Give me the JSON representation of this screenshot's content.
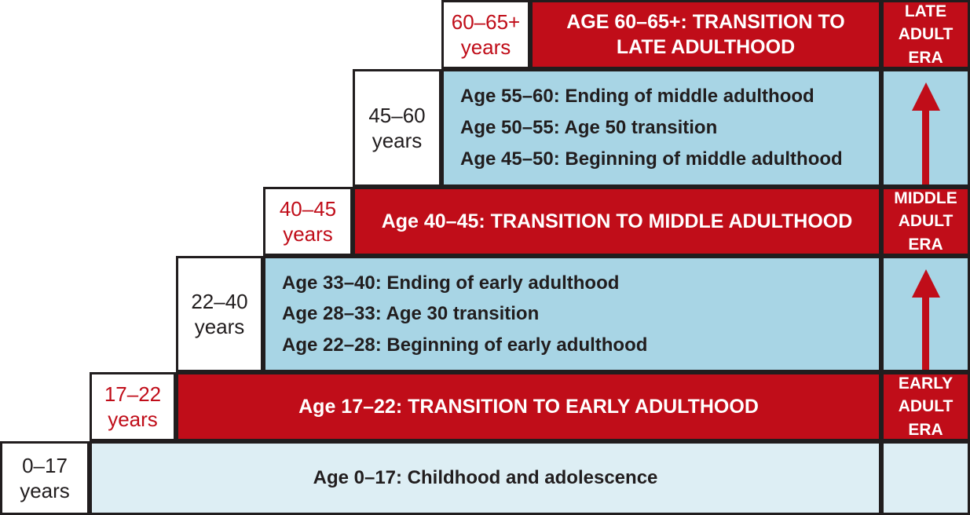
{
  "colors": {
    "red": "#c00d19",
    "medium_blue": "#a8d5e5",
    "pale_blue": "#ddeef4",
    "border": "#211d1e",
    "white": "#ffffff"
  },
  "rows": [
    {
      "type": "transition",
      "label": {
        "range": "60–65+",
        "unit": "years",
        "text_color": "#c00d19"
      },
      "content": "AGE 60–65+: TRANSITION TO LATE ADULTHOOD",
      "era": "LATE ADULT ERA"
    },
    {
      "type": "period",
      "label": {
        "range": "45–60",
        "unit": "years",
        "text_color": "#211d1e"
      },
      "items": [
        "Age 55–60: Ending of middle adulthood",
        "Age 50–55: Age 50 transition",
        "Age 45–50: Beginning of middle adulthood"
      ],
      "era_arrow_icon": "up-arrow-icon"
    },
    {
      "type": "transition",
      "label": {
        "range": "40–45",
        "unit": "years",
        "text_color": "#c00d19"
      },
      "content": "Age 40–45: TRANSITION TO MIDDLE ADULTHOOD",
      "era": "MIDDLE ADULT ERA"
    },
    {
      "type": "period",
      "label": {
        "range": "22–40",
        "unit": "years",
        "text_color": "#211d1e"
      },
      "items": [
        "Age 33–40: Ending of early adulthood",
        "Age 28–33: Age 30 transition",
        "Age 22–28: Beginning of early adulthood"
      ],
      "era_arrow_icon": "up-arrow-icon"
    },
    {
      "type": "transition",
      "label": {
        "range": "17–22",
        "unit": "years",
        "text_color": "#c00d19"
      },
      "content": "Age 17–22: TRANSITION TO EARLY ADULTHOOD",
      "era": "EARLY ADULT ERA"
    },
    {
      "type": "period",
      "label": {
        "range": "0–17",
        "unit": "years",
        "text_color": "#211d1e"
      },
      "content": "Age 0–17: Childhood and adolescence",
      "era": ""
    }
  ]
}
